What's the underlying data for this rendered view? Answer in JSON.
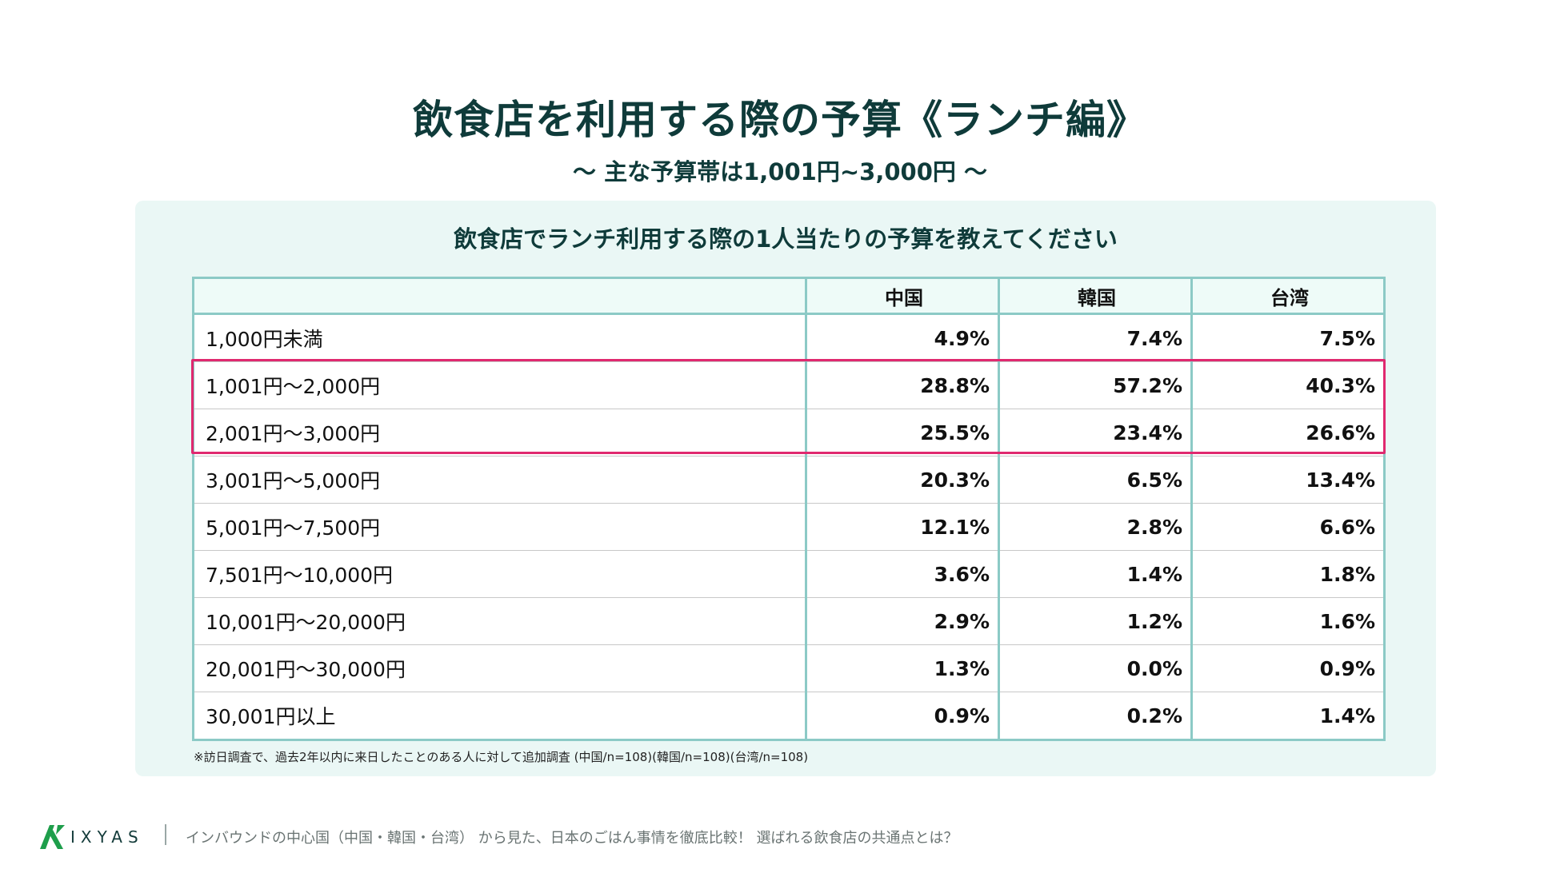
{
  "header": {
    "title": "飲食店を利用する際の予算《ランチ編》",
    "subtitle": "〜 主な予算帯は1,001円~3,000円 〜"
  },
  "chart_data": {
    "type": "table",
    "title": "飲食店でランチ利用する際の1人当たりの予算を教えてください",
    "columns": [
      "",
      "中国",
      "韓国",
      "台湾"
    ],
    "rows": [
      {
        "label": "1,000円未満",
        "values": [
          "4.9%",
          "7.4%",
          "7.5%"
        ]
      },
      {
        "label": "1,001円〜2,000円",
        "values": [
          "28.8%",
          "57.2%",
          "40.3%"
        ]
      },
      {
        "label": "2,001円〜3,000円",
        "values": [
          "25.5%",
          "23.4%",
          "26.6%"
        ]
      },
      {
        "label": "3,001円〜5,000円",
        "values": [
          "20.3%",
          "6.5%",
          "13.4%"
        ]
      },
      {
        "label": "5,001円〜7,500円",
        "values": [
          "12.1%",
          "2.8%",
          "6.6%"
        ]
      },
      {
        "label": "7,501円〜10,000円",
        "values": [
          "3.6%",
          "1.4%",
          "1.8%"
        ]
      },
      {
        "label": "10,001円〜20,000円",
        "values": [
          "2.9%",
          "1.2%",
          "1.6%"
        ]
      },
      {
        "label": "20,001円〜30,000円",
        "values": [
          "1.3%",
          "0.0%",
          "0.9%"
        ]
      },
      {
        "label": "30,001円以上",
        "values": [
          "0.9%",
          "0.2%",
          "1.4%"
        ]
      }
    ],
    "highlighted_rows": [
      "1,001円〜2,000円",
      "2,001円〜3,000円"
    ],
    "note": "※訪日調査で、過去2年以内に来日したことのある人に対して追加調査 (中国/n=108)(韓国/n=108)(台湾/n=108)"
  },
  "colors": {
    "title": "#0f3b3a",
    "panel": "#eaf7f5",
    "table_border": "#8ccac6",
    "highlight": "#e0296f",
    "logo_green": "#1e9e4b"
  },
  "footer": {
    "logo_text": "IXYAS",
    "text": "インバウンドの中心国（中国・韓国・台湾） から見た、日本のごはん事情を徹底比較！ 選ばれる飲食店の共通点とは？"
  }
}
